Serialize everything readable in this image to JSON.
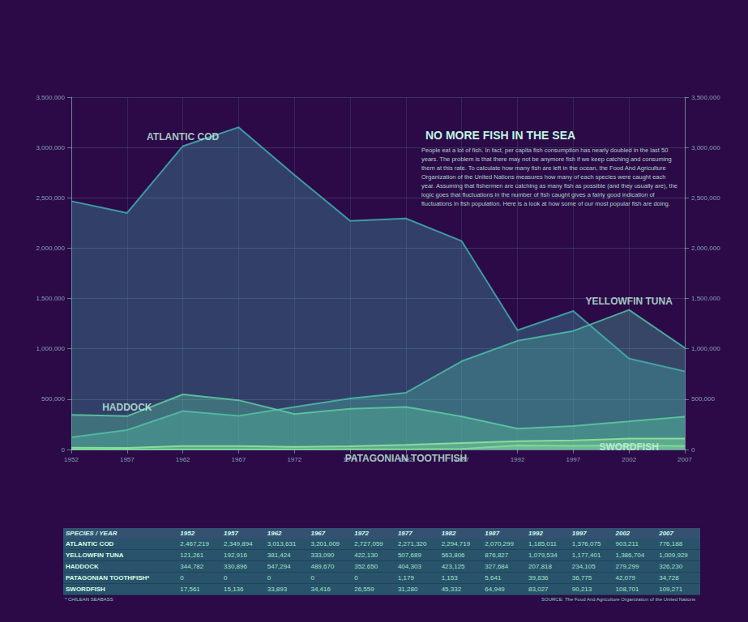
{
  "chart_data": {
    "type": "line",
    "title": "NO MORE FISH IN THE SEA",
    "subtitle": "People eat a lot of fish. In fact, per capita fish consumption has nearly doubled in the last 50 years. The problem is that there may not be anymore fish if we keep catching and consuming them at this rate. To calculate how many fish are left in the ocean, the Food And Agriculture Organization of the United Nations measures how many of each species were caught each year. Assuming that fishermen are catching as many fish as possible (and they usually are), the logic goes that fluctuations in the number of fish caught gives a fairly good indication of fluctuations in fish population. Here is a look at how some of our most popular fish are doing.",
    "x": [
      1952,
      1957,
      1962,
      1967,
      1972,
      1977,
      1982,
      1987,
      1992,
      1997,
      2002,
      2007
    ],
    "series": [
      {
        "name": "ATLANTIC COD",
        "table_label": "ATLANTIC COD",
        "color": "#3fa6a8",
        "values": [
          2467219,
          2349894,
          3013631,
          3201009,
          2727059,
          2271320,
          2294719,
          2070299,
          1185011,
          1376075,
          903211,
          776188
        ]
      },
      {
        "name": "YELLOWFIN TUNA",
        "table_label": "YELLOWFIN TUNA",
        "color": "#4cb8a4",
        "values": [
          121261,
          192916,
          381424,
          333090,
          422130,
          507689,
          563806,
          876827,
          1079534,
          1177401,
          1386704,
          1009929
        ]
      },
      {
        "name": "HADDOCK",
        "table_label": "HADDOCK",
        "color": "#5cc8a0",
        "values": [
          344782,
          330896,
          547294,
          489670,
          352650,
          404303,
          423125,
          327684,
          207818,
          234105,
          279299,
          326230
        ]
      },
      {
        "name": "PATAGONIAN TOOTHFISH",
        "table_label": "PATAGONIAN TOOTHFISH*",
        "color": "#7ad89a",
        "values": [
          0,
          0,
          0,
          0,
          0,
          1179,
          1153,
          5641,
          39836,
          36775,
          42079,
          34728
        ]
      },
      {
        "name": "SWORDFISH",
        "table_label": "SWORDFISH",
        "color": "#8ee49a",
        "values": [
          17561,
          15136,
          33893,
          34416,
          26559,
          31280,
          45332,
          64949,
          83027,
          90213,
          108701,
          109271
        ]
      }
    ],
    "ylim": [
      0,
      3500000
    ],
    "yticks": [
      0,
      {
        "value": 500000,
        "label": "500,000"
      },
      {
        "value": 1000000,
        "label": "1,000,000"
      },
      {
        "value": 1500000,
        "label": "1,500,000"
      },
      {
        "value": 2000000,
        "label": "2,000,000"
      },
      {
        "value": 2500000,
        "label": "2,500,000"
      },
      {
        "value": 3000000,
        "label": "3,000,000"
      },
      {
        "value": 3500000,
        "label": "3,500,000"
      }
    ],
    "y2lim": [
      0,
      3500000
    ],
    "y2ticks": [
      0,
      {
        "value": 500000,
        "label": "500,000"
      },
      {
        "value": 1000000,
        "label": "1,000,000"
      },
      {
        "value": 1500000,
        "label": "1,500,000"
      },
      {
        "value": 2000000,
        "label": "2,000,000"
      },
      {
        "value": 2500000,
        "label": "2,500,000"
      },
      {
        "value": 3000000,
        "label": "3,000,000"
      },
      {
        "value": 3500000,
        "label": "3,500,000"
      }
    ],
    "grid": true
  },
  "table": {
    "header": "SPECIES / YEAR",
    "footnote": "* CHILEAN SEABASS",
    "source": "SOURCE: The Food And Agriculture Organization of the United Nations"
  }
}
